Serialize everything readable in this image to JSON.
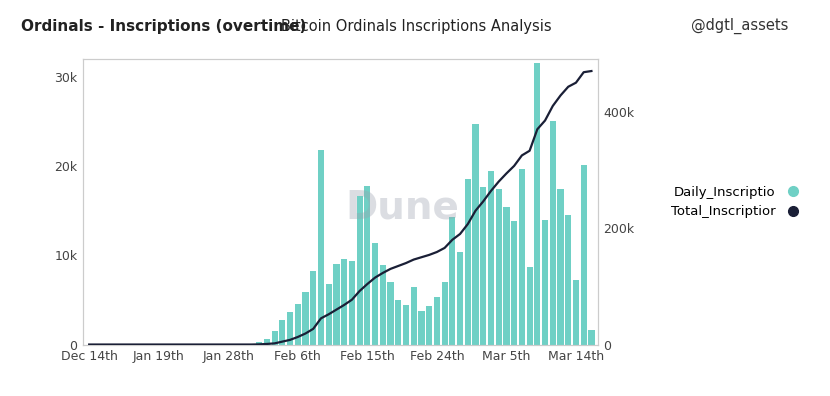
{
  "chart_data": {
    "type": "bar",
    "title": "Ordinals - Inscriptions (overtime)",
    "subtitle": "Bitcoin Ordinals Inscriptions Analysis",
    "author": "@dgtl_assets",
    "watermark": "Dune",
    "categories": [
      "Dec 14th",
      null,
      null,
      null,
      null,
      null,
      null,
      null,
      null,
      "Jan 19th",
      null,
      null,
      null,
      null,
      null,
      null,
      null,
      null,
      "Jan 28th",
      null,
      null,
      null,
      null,
      null,
      null,
      null,
      null,
      "Feb 6th",
      null,
      null,
      null,
      null,
      null,
      null,
      null,
      null,
      "Feb 15th",
      null,
      null,
      null,
      null,
      null,
      null,
      null,
      null,
      "Feb 24th",
      null,
      null,
      null,
      null,
      null,
      null,
      null,
      null,
      "Mar 5th",
      null,
      null,
      null,
      null,
      null,
      null,
      null,
      null,
      "Mar 14th",
      null,
      null
    ],
    "series": [
      {
        "name": "Daily_Inscriptio",
        "type": "bar",
        "color": "#6fd0c5",
        "values": [
          0,
          0,
          0,
          0,
          0,
          0,
          0,
          0,
          0,
          0,
          0,
          0,
          0,
          0,
          0,
          0,
          0,
          0,
          0,
          0,
          0,
          0,
          300,
          600,
          1500,
          2800,
          3600,
          4600,
          5900,
          8300,
          21800,
          6800,
          9000,
          9600,
          9400,
          16700,
          17800,
          11400,
          8900,
          7000,
          5000,
          4400,
          6400,
          3800,
          4300,
          5300,
          7000,
          14300,
          10400,
          18600,
          24800,
          17700,
          19500,
          17400,
          15400,
          13900,
          19700,
          8700,
          31600,
          14000,
          25100,
          17400,
          14500,
          7200,
          20200,
          1600
        ]
      },
      {
        "name": "Total_Inscriptior",
        "type": "line",
        "color": "#1a1f36",
        "axis": "y2",
        "values": [
          0,
          0,
          0,
          0,
          0,
          0,
          0,
          0,
          0,
          0,
          0,
          0,
          0,
          0,
          0,
          0,
          0,
          0,
          0,
          0,
          0,
          0,
          300,
          1000,
          2000,
          5000,
          8000,
          13000,
          19000,
          27000,
          45000,
          52000,
          60000,
          68000,
          77000,
          92000,
          104000,
          115000,
          123000,
          130000,
          135000,
          140000,
          146000,
          150000,
          154000,
          159000,
          166000,
          180000,
          190000,
          207000,
          230000,
          246000,
          264000,
          280000,
          294000,
          307000,
          325000,
          333000,
          370000,
          385000,
          410000,
          428000,
          443000,
          450000,
          468000,
          470000
        ]
      }
    ],
    "ylim": [
      0,
      32000
    ],
    "yticks": [
      0,
      {
        "value": 10000,
        "label": "10k"
      },
      {
        "value": 20000,
        "label": "20k"
      },
      {
        "value": 30000,
        "label": "30k"
      }
    ],
    "y2lim": [
      0,
      490000
    ],
    "y2ticks": [
      0,
      {
        "value": 200000,
        "label": "200k"
      },
      {
        "value": 400000,
        "label": "400k"
      }
    ],
    "legend": "center left",
    "grid": false
  }
}
